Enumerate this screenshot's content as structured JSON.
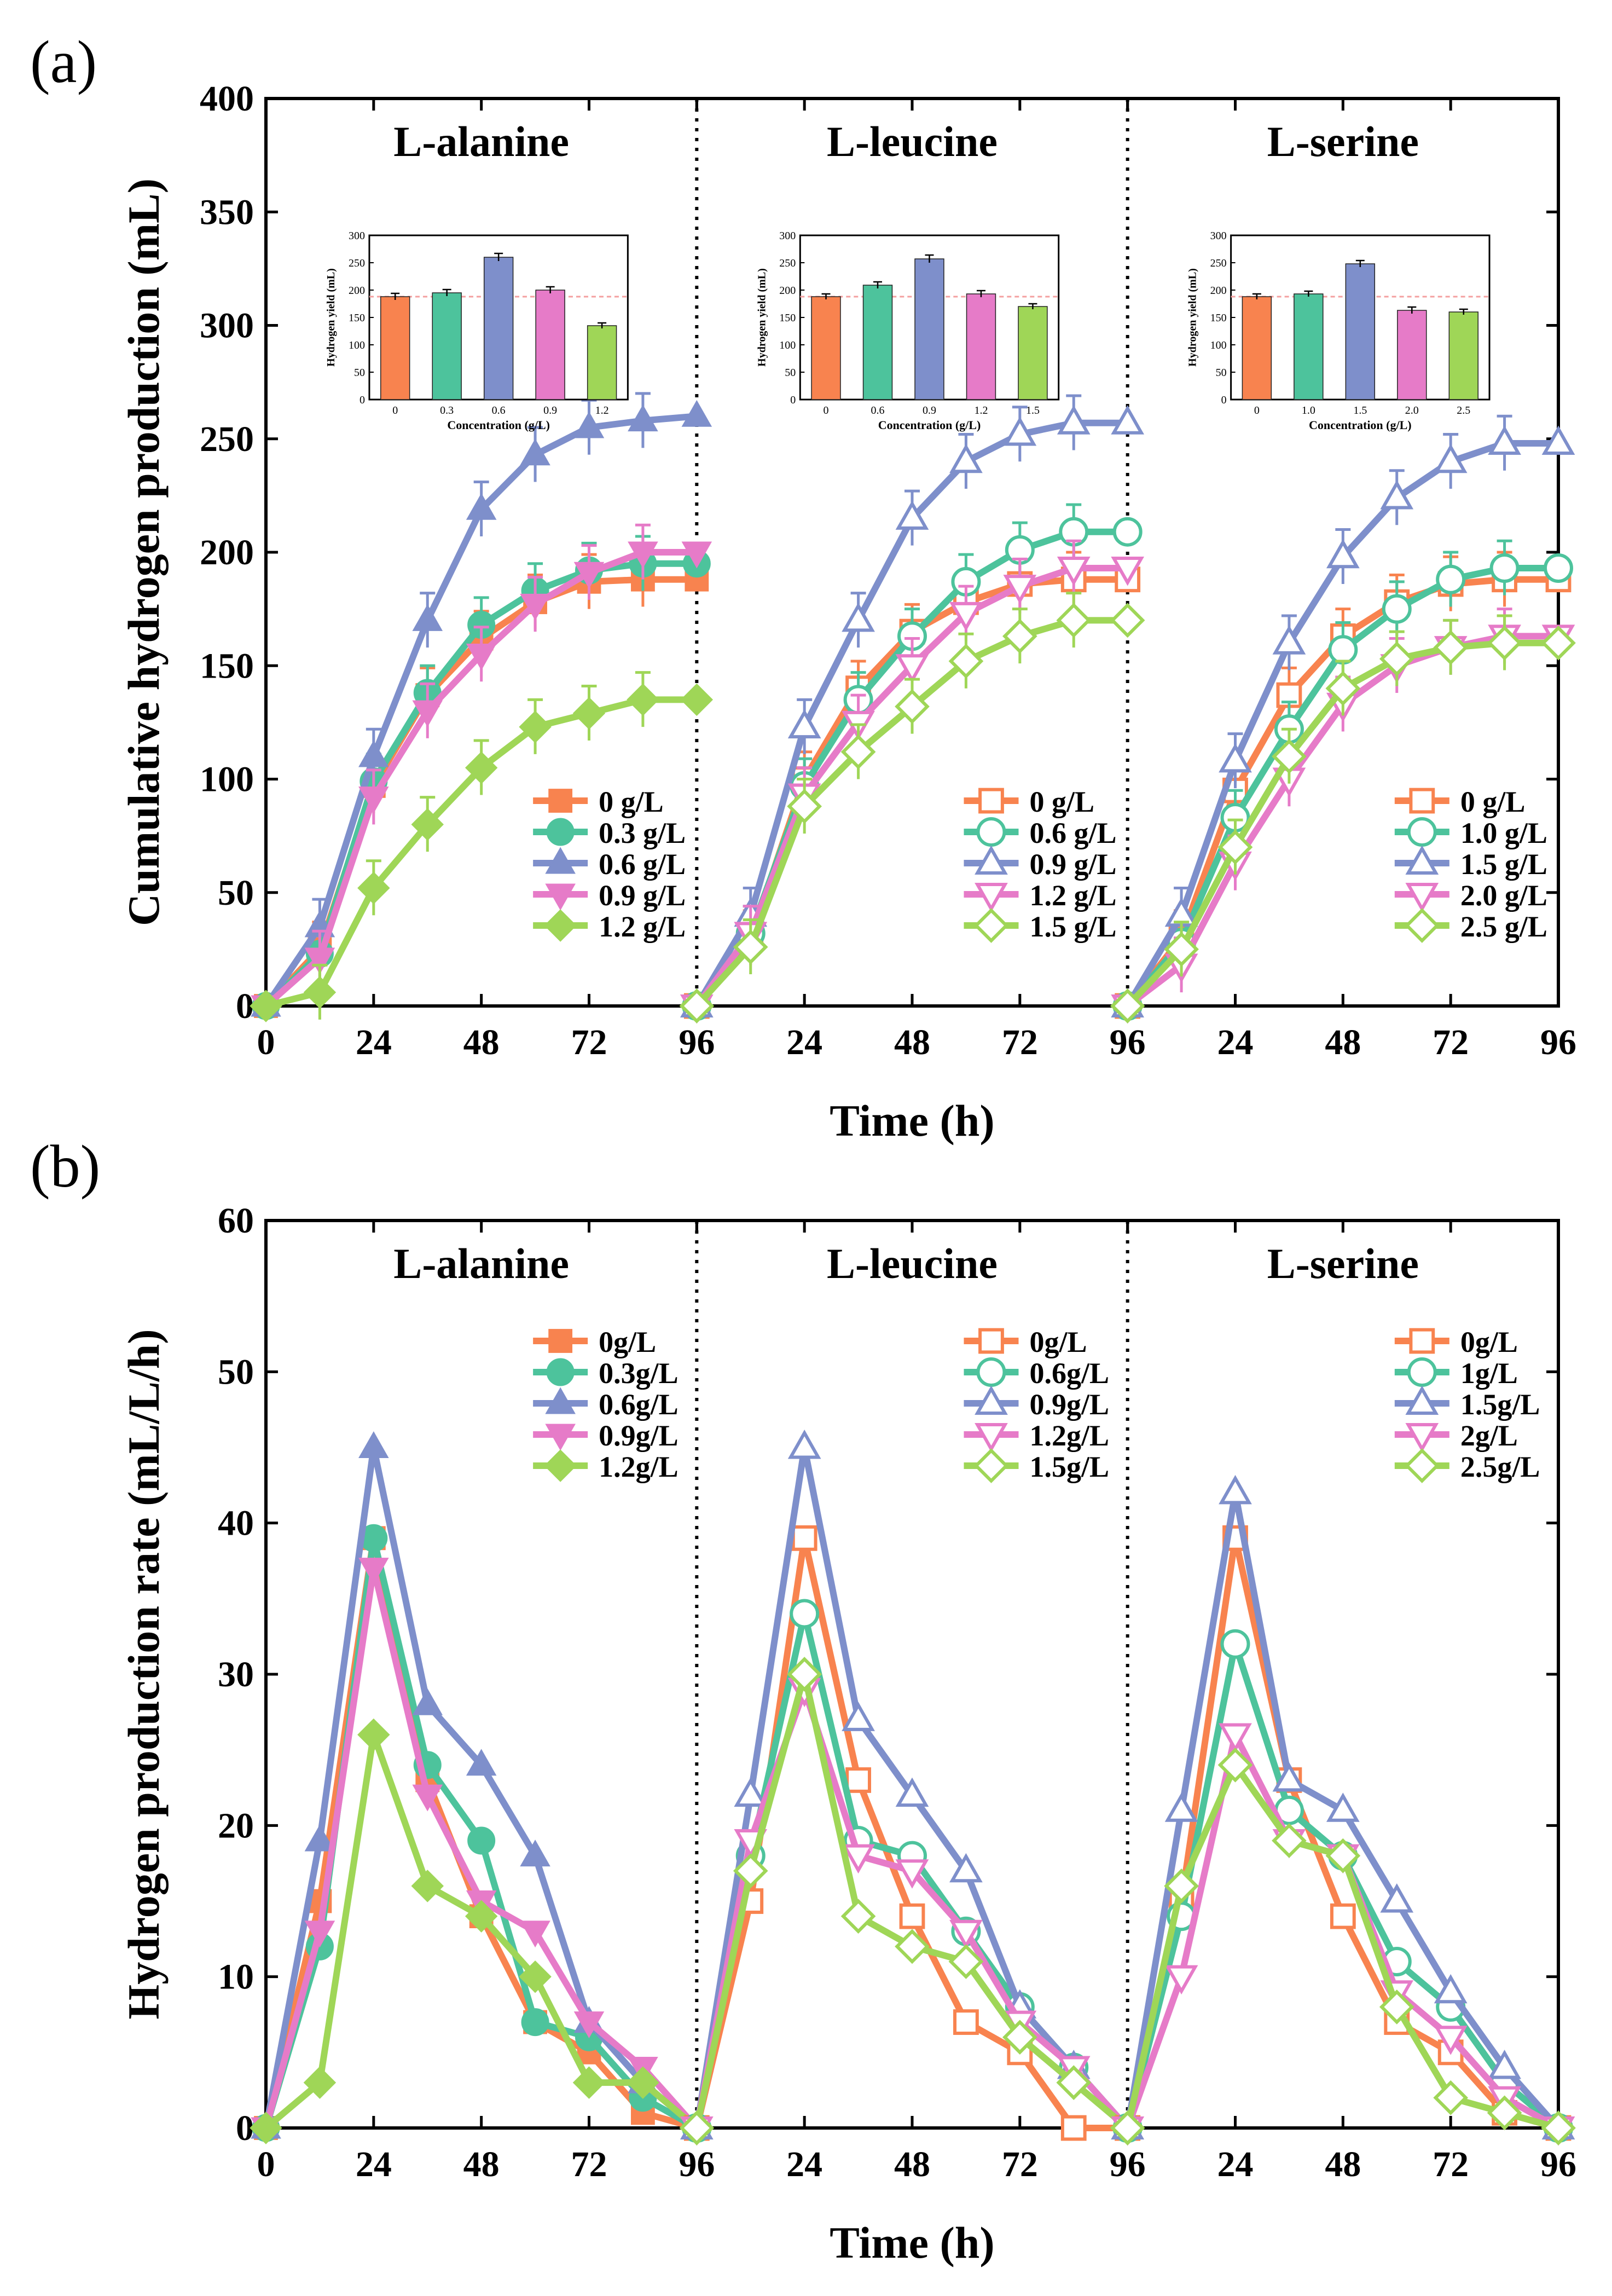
{
  "figure": {
    "panel_a_label": "(a)",
    "panel_b_label": "(b)"
  },
  "colors": {
    "c0": "#F8834F",
    "c1": "#4DC39C",
    "c2": "#7E8FCB",
    "c3": "#E67BC8",
    "c4": "#9FD657",
    "refline": "#F4A0A0",
    "axis": "#000000"
  },
  "chart_data": [
    {
      "type": "line",
      "panel": "a",
      "ylabel": "Cumulative hydrogen production (mL)",
      "xlabel": "Time (h)",
      "ylim": [
        0,
        400
      ],
      "yticks": [
        "0",
        "50",
        "100",
        "150",
        "200",
        "250",
        "300",
        "350",
        "400"
      ],
      "xticks": [
        "0",
        "24",
        "48",
        "72",
        "96"
      ],
      "x": [
        0,
        12,
        24,
        36,
        48,
        60,
        72,
        84,
        96
      ],
      "subplots": [
        {
          "title": "L-alanine",
          "marker_fill": "filled",
          "series": [
            {
              "name": "0 g/L",
              "marker": "square",
              "values": [
                0,
                25,
                97,
                137,
                162,
                178,
                187,
                188,
                188
              ]
            },
            {
              "name": "0.3 g/L",
              "marker": "circle",
              "values": [
                0,
                23,
                99,
                138,
                168,
                183,
                192,
                195,
                195
              ]
            },
            {
              "name": "0.6 g/L",
              "marker": "triangle-up",
              "values": [
                0,
                35,
                110,
                170,
                219,
                243,
                255,
                258,
                260
              ]
            },
            {
              "name": "0.9 g/L",
              "marker": "triangle-down",
              "values": [
                0,
                21,
                92,
                130,
                155,
                177,
                191,
                200,
                200
              ]
            },
            {
              "name": "1.2 g/L",
              "marker": "diamond",
              "values": [
                0,
                6,
                52,
                80,
                105,
                123,
                129,
                135,
                135
              ]
            }
          ],
          "inset": {
            "ylabel": "Hydrogen yield (mL)",
            "xlabel": "Concentration (g/L)",
            "yticks": [
              "0",
              "50",
              "100",
              "150",
              "200",
              "250",
              "300"
            ],
            "ymax": 300,
            "ref": 188,
            "categories": [
              "0",
              "0.3",
              "0.6",
              "0.9",
              "1.2"
            ],
            "values": [
              188,
              195,
              260,
              200,
              135
            ],
            "errors": [
              6,
              6,
              7,
              6,
              5
            ]
          }
        },
        {
          "title": "L-leucine",
          "marker_fill": "open",
          "series": [
            {
              "name": "0 g/L",
              "marker": "square",
              "values": [
                0,
                30,
                100,
                140,
                165,
                178,
                186,
                188,
                188
              ]
            },
            {
              "name": "0.6 g/L",
              "marker": "circle",
              "values": [
                0,
                32,
                97,
                135,
                163,
                187,
                201,
                209,
                209
              ]
            },
            {
              "name": "0.9 g/L",
              "marker": "triangle-up",
              "values": [
                0,
                40,
                123,
                170,
                215,
                240,
                252,
                257,
                257
              ]
            },
            {
              "name": "1.2 g/L",
              "marker": "triangle-down",
              "values": [
                0,
                32,
                93,
                125,
                150,
                173,
                185,
                193,
                193
              ]
            },
            {
              "name": "1.5 g/L",
              "marker": "diamond",
              "values": [
                0,
                26,
                88,
                112,
                132,
                152,
                163,
                170,
                170
              ]
            }
          ],
          "inset": {
            "ylabel": "Hydrogen yield (mL)",
            "xlabel": "Concentration (g/L)",
            "yticks": [
              "0",
              "50",
              "100",
              "150",
              "200",
              "250",
              "300"
            ],
            "ymax": 300,
            "ref": 188,
            "categories": [
              "0",
              "0.6",
              "0.9",
              "1.2",
              "1.5"
            ],
            "values": [
              188,
              209,
              257,
              193,
              170
            ],
            "errors": [
              5,
              6,
              7,
              6,
              5
            ]
          }
        },
        {
          "title": "L-serine",
          "marker_fill": "open",
          "series": [
            {
              "name": "0 g/L",
              "marker": "square",
              "values": [
                0,
                30,
                95,
                137,
                163,
                178,
                186,
                188,
                188
              ]
            },
            {
              "name": "1.0 g/L",
              "marker": "circle",
              "values": [
                0,
                28,
                83,
                122,
                157,
                175,
                188,
                193,
                193
              ]
            },
            {
              "name": "1.5 g/L",
              "marker": "triangle-up",
              "values": [
                0,
                40,
                108,
                160,
                198,
                224,
                240,
                248,
                248
              ]
            },
            {
              "name": "2.0 g/L",
              "marker": "triangle-down",
              "values": [
                0,
                18,
                63,
                100,
                133,
                150,
                158,
                163,
                163
              ]
            },
            {
              "name": "2.5 g/L",
              "marker": "diamond",
              "values": [
                0,
                25,
                70,
                110,
                140,
                153,
                158,
                160,
                160
              ]
            }
          ],
          "inset": {
            "ylabel": "Hydrogen yield (mL)",
            "xlabel": "Concentration (g/L)",
            "yticks": [
              "0",
              "50",
              "100",
              "150",
              "200",
              "250",
              "300"
            ],
            "ymax": 300,
            "ref": 188,
            "categories": [
              "0",
              "1.0",
              "1.5",
              "2.0",
              "2.5"
            ],
            "values": [
              188,
              193,
              248,
              163,
              160
            ],
            "errors": [
              5,
              5,
              6,
              6,
              5
            ]
          }
        }
      ]
    },
    {
      "type": "line",
      "panel": "b",
      "ylabel": "Hydrogen production rate (mL/L/h)",
      "xlabel": "Time (h)",
      "ylim": [
        0,
        60
      ],
      "yticks": [
        "0",
        "10",
        "20",
        "30",
        "40",
        "50",
        "60"
      ],
      "xticks": [
        "0",
        "24",
        "48",
        "72",
        "96"
      ],
      "x": [
        0,
        12,
        24,
        36,
        48,
        60,
        72,
        84,
        96
      ],
      "subplots": [
        {
          "title": "L-alanine",
          "marker_fill": "filled",
          "series": [
            {
              "name": "0g/L",
              "marker": "square",
              "values": [
                0,
                15,
                39,
                23,
                14,
                7,
                5,
                1,
                0
              ]
            },
            {
              "name": "0.3g/L",
              "marker": "circle",
              "values": [
                0,
                12,
                39,
                24,
                19,
                7,
                6,
                2,
                0
              ]
            },
            {
              "name": "0.6g/L",
              "marker": "triangle-up",
              "values": [
                0,
                19,
                45,
                28,
                24,
                18,
                7,
                3,
                0
              ]
            },
            {
              "name": "0.9g/L",
              "marker": "triangle-down",
              "values": [
                0,
                13,
                37,
                22,
                15,
                13,
                7,
                4,
                0
              ]
            },
            {
              "name": "1.2g/L",
              "marker": "diamond",
              "values": [
                0,
                3,
                26,
                16,
                14,
                10,
                3,
                3,
                0
              ]
            }
          ]
        },
        {
          "title": "L-leucine",
          "marker_fill": "open",
          "series": [
            {
              "name": "0g/L",
              "marker": "square",
              "values": [
                0,
                15,
                39,
                23,
                14,
                7,
                5,
                0,
                0
              ]
            },
            {
              "name": "0.6g/L",
              "marker": "circle",
              "values": [
                0,
                18,
                34,
                19,
                18,
                13,
                8,
                4,
                0
              ]
            },
            {
              "name": "0.9g/L",
              "marker": "triangle-up",
              "values": [
                0,
                22,
                45,
                27,
                22,
                17,
                8,
                4,
                0
              ]
            },
            {
              "name": "1.2g/L",
              "marker": "triangle-down",
              "values": [
                0,
                19,
                29,
                18,
                17,
                13,
                7,
                4,
                0
              ]
            },
            {
              "name": "1.5g/L",
              "marker": "diamond",
              "values": [
                0,
                17,
                30,
                14,
                12,
                11,
                6,
                3,
                0
              ]
            }
          ]
        },
        {
          "title": "L-serine",
          "marker_fill": "open",
          "series": [
            {
              "name": "0g/L",
              "marker": "square",
              "values": [
                0,
                15,
                39,
                23,
                14,
                7,
                5,
                1,
                0
              ]
            },
            {
              "name": "1g/L",
              "marker": "circle",
              "values": [
                0,
                14,
                32,
                21,
                18,
                11,
                8,
                3,
                0
              ]
            },
            {
              "name": "1.5g/L",
              "marker": "triangle-up",
              "values": [
                0,
                21,
                42,
                23,
                21,
                15,
                9,
                4,
                0
              ]
            },
            {
              "name": "2g/L",
              "marker": "triangle-down",
              "values": [
                0,
                10,
                26,
                19,
                18,
                9,
                6,
                2,
                0
              ]
            },
            {
              "name": "2.5g/L",
              "marker": "diamond",
              "values": [
                0,
                16,
                24,
                19,
                18,
                8,
                2,
                1,
                0
              ]
            }
          ]
        }
      ]
    }
  ]
}
